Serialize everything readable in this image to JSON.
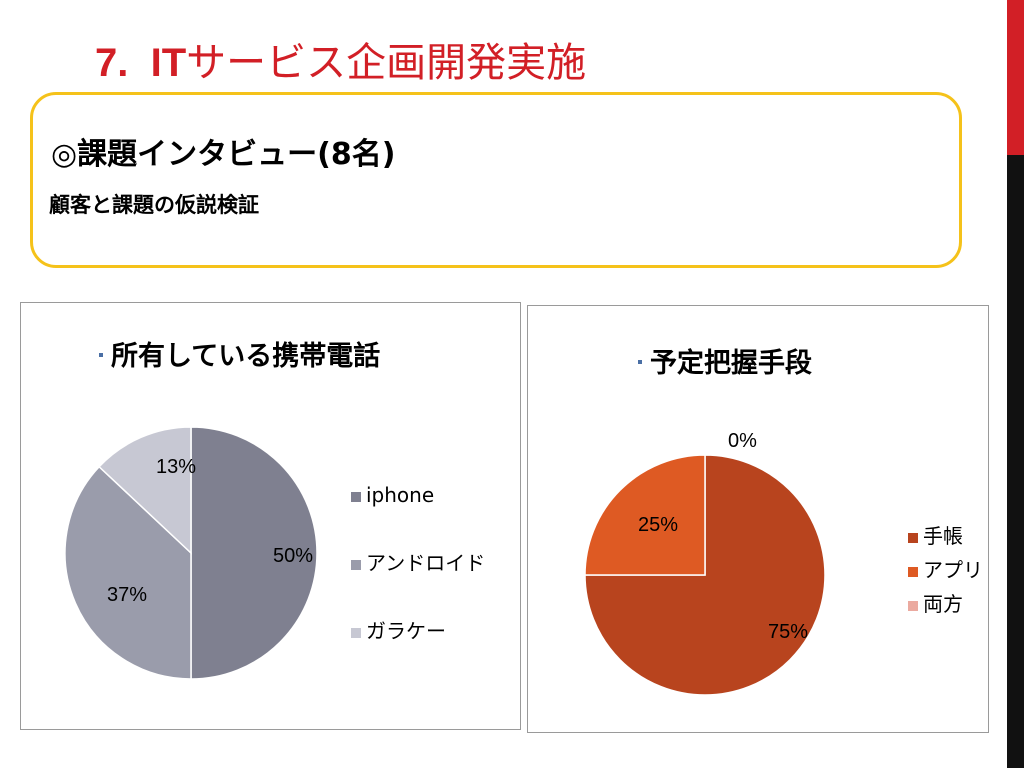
{
  "slide": {
    "title_num": "7.  IT",
    "title_rest": "サービス企画開発実施"
  },
  "callout": {
    "heading": "◎課題インタビュー(8名)",
    "sub": "顧客と課題の仮説検証"
  },
  "colors": {
    "title_red": "#d21f26",
    "callout_border": "#f5c21a"
  },
  "chart_data": [
    {
      "type": "pie",
      "title": "所有している携帯電話",
      "categories": [
        "iphone",
        "アンドロイド",
        "ガラケー"
      ],
      "values": [
        50,
        37,
        13
      ],
      "data_labels": [
        "50%",
        "37%",
        "13%"
      ],
      "colors": [
        "#7f8090",
        "#9a9cab",
        "#c7c8d3"
      ],
      "legend_position": "right"
    },
    {
      "type": "pie",
      "title": "予定把握手段",
      "categories": [
        "手帳",
        "アプリ",
        "両方"
      ],
      "values": [
        75,
        25,
        0
      ],
      "data_labels": [
        "75%",
        "25%",
        "0%"
      ],
      "colors": [
        "#b8441e",
        "#de5a23",
        "#ebaaa0"
      ],
      "legend_position": "right"
    }
  ]
}
